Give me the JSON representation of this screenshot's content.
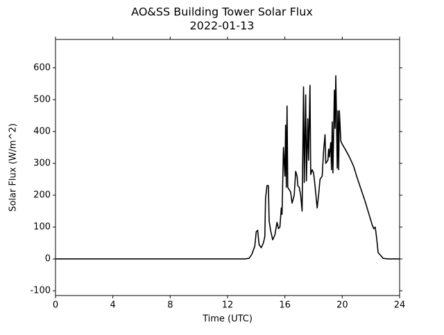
{
  "chart_data": {
    "type": "line",
    "title": "AO&SS Building Tower Solar Flux",
    "subtitle": "2022-01-13",
    "x_label": "Time (UTC)",
    "y_label": "Solar Flux (W/m^2)",
    "xlim": [
      0,
      24
    ],
    "xticks": [
      0,
      4,
      8,
      12,
      16,
      20,
      24
    ],
    "ylim": [
      -115,
      689
    ],
    "yticks": [
      -100,
      0,
      100,
      200,
      300,
      400,
      500,
      600
    ],
    "series": [
      {
        "name": "Solar Flux",
        "color": "#000000",
        "x": [
          0,
          13.2,
          13.5,
          13.7,
          13.9,
          14.0,
          14.1,
          14.2,
          14.35,
          14.5,
          14.6,
          14.65,
          14.75,
          14.85,
          14.9,
          15.0,
          15.15,
          15.3,
          15.45,
          15.55,
          15.65,
          15.75,
          15.8,
          15.9,
          16.0,
          16.05,
          16.1,
          16.15,
          16.2,
          16.4,
          16.5,
          16.65,
          16.75,
          16.85,
          16.9,
          17.0,
          17.1,
          17.2,
          17.3,
          17.35,
          17.45,
          17.5,
          17.6,
          17.65,
          17.75,
          17.8,
          17.9,
          18.0,
          18.1,
          18.25,
          18.35,
          18.45,
          18.6,
          18.7,
          18.8,
          18.85,
          19.0,
          19.05,
          19.1,
          19.2,
          19.25,
          19.3,
          19.35,
          19.45,
          19.5,
          19.55,
          19.6,
          19.65,
          19.7,
          19.75,
          19.8,
          19.9,
          20.0,
          20.2,
          20.5,
          20.8,
          21.0,
          21.3,
          21.6,
          21.9,
          22.1,
          22.2,
          22.3,
          22.4,
          22.5,
          22.7,
          22.85,
          23.2,
          24
        ],
        "values": [
          0,
          0,
          2,
          15,
          40,
          85,
          90,
          45,
          35,
          50,
          70,
          190,
          230,
          230,
          120,
          90,
          60,
          75,
          115,
          95,
          100,
          160,
          140,
          350,
          260,
          420,
          225,
          480,
          225,
          210,
          175,
          200,
          275,
          260,
          230,
          225,
          200,
          150,
          540,
          240,
          515,
          245,
          440,
          310,
          545,
          265,
          280,
          270,
          230,
          160,
          200,
          250,
          260,
          340,
          390,
          300,
          310,
          345,
          320,
          365,
          280,
          430,
          270,
          530,
          410,
          575,
          440,
          285,
          465,
          280,
          465,
          370,
          360,
          345,
          320,
          290,
          260,
          220,
          180,
          135,
          105,
          95,
          100,
          65,
          20,
          10,
          2,
          0,
          0
        ]
      }
    ]
  }
}
